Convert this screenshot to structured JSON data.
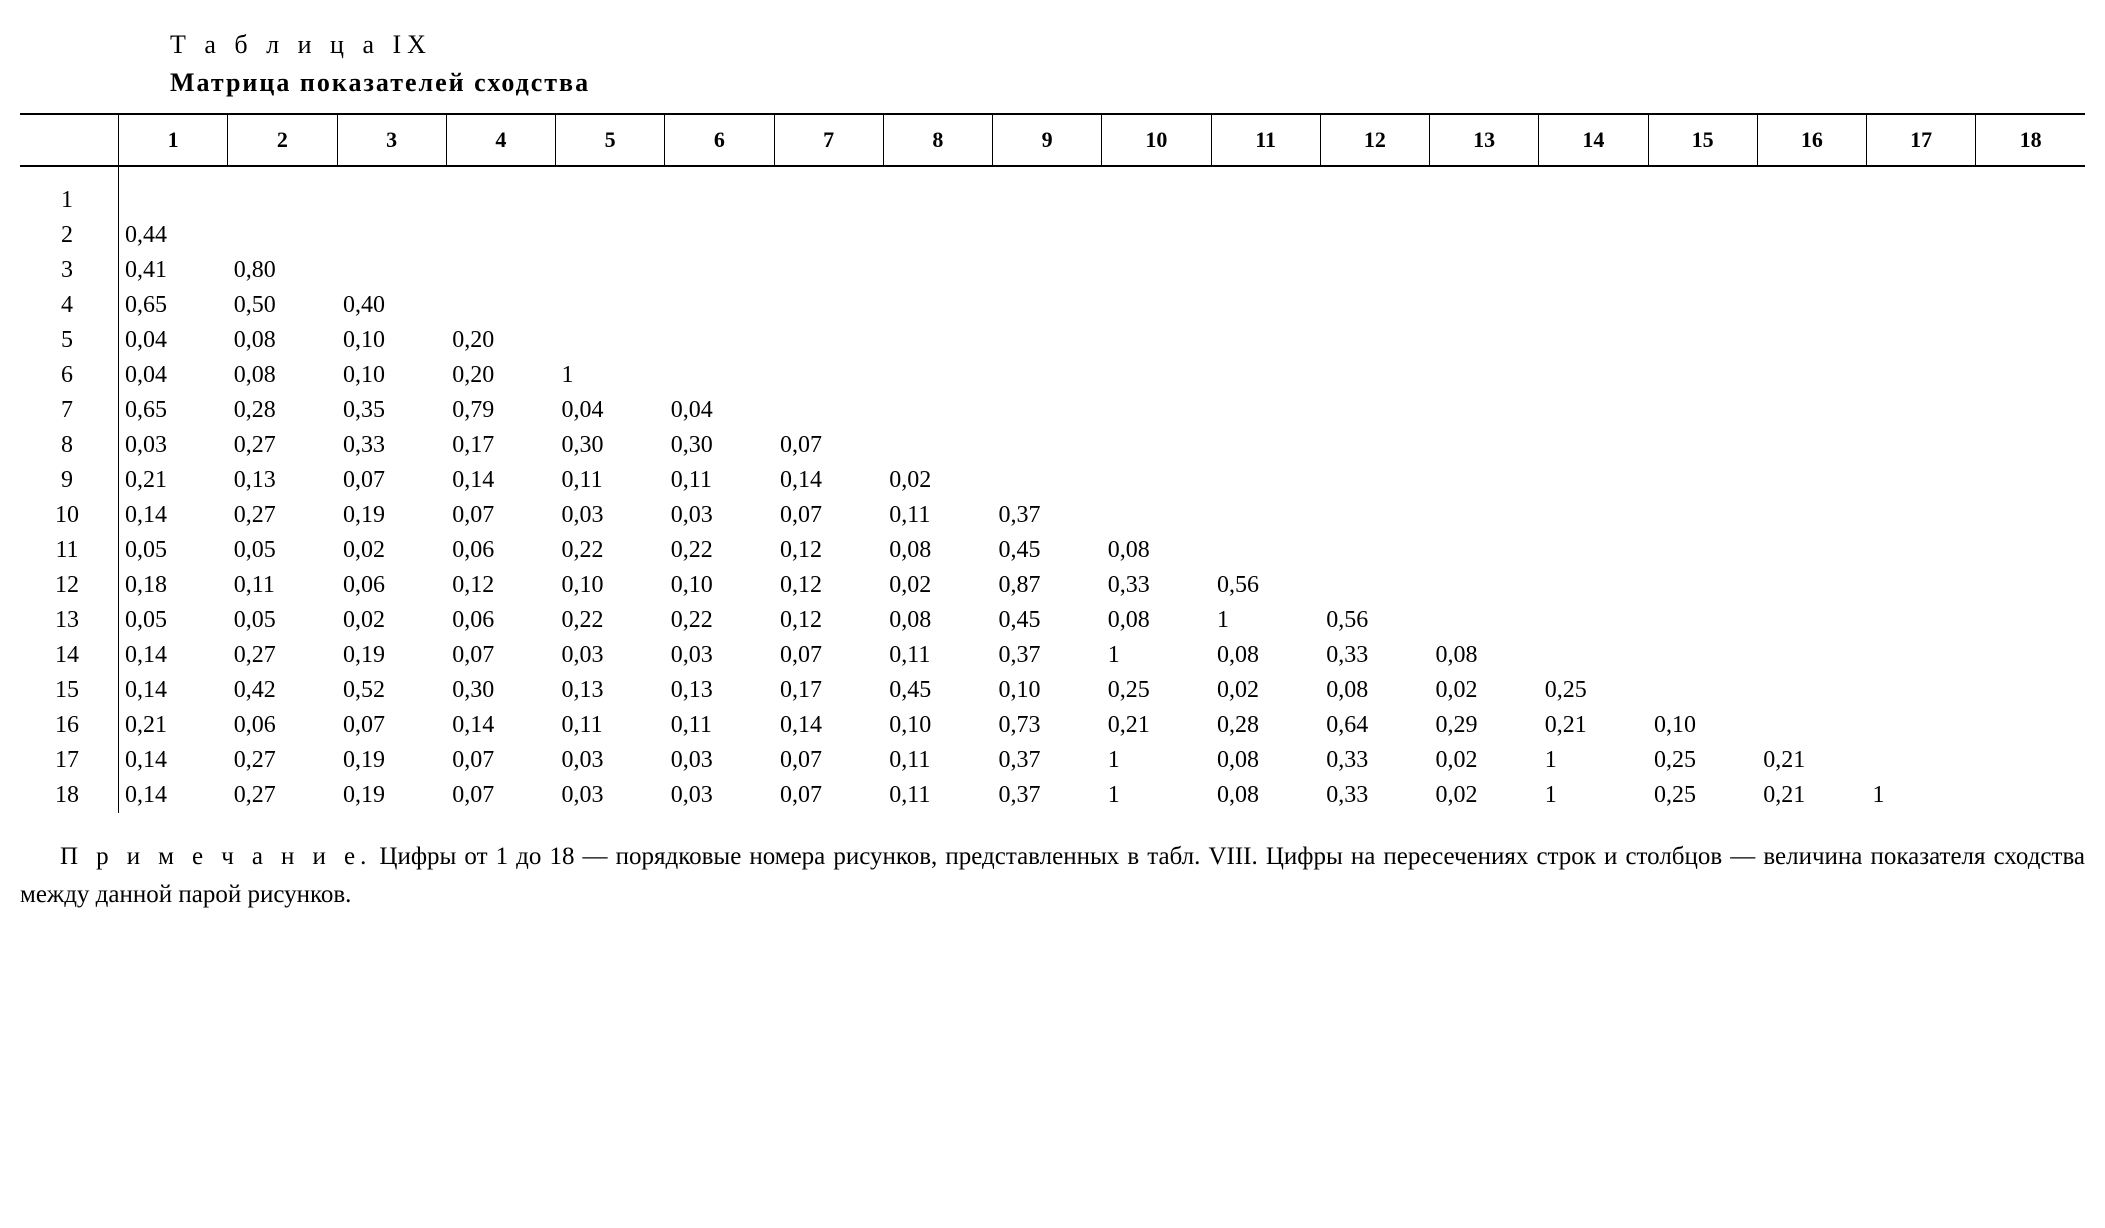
{
  "table_number": "Т а б л и ц а IX",
  "table_title": "Матрица показателей сходства",
  "columns": [
    "1",
    "2",
    "3",
    "4",
    "5",
    "6",
    "7",
    "8",
    "9",
    "10",
    "11",
    "12",
    "13",
    "14",
    "15",
    "16",
    "17",
    "18"
  ],
  "row_labels": [
    "1",
    "2",
    "3",
    "4",
    "5",
    "6",
    "7",
    "8",
    "9",
    "10",
    "11",
    "12",
    "13",
    "14",
    "15",
    "16",
    "17",
    "18"
  ],
  "rows": [
    [],
    [
      "0,44"
    ],
    [
      "0,41",
      "0,80"
    ],
    [
      "0,65",
      "0,50",
      "0,40"
    ],
    [
      "0,04",
      "0,08",
      "0,10",
      "0,20"
    ],
    [
      "0,04",
      "0,08",
      "0,10",
      "0,20",
      "1"
    ],
    [
      "0,65",
      "0,28",
      "0,35",
      "0,79",
      "0,04",
      "0,04"
    ],
    [
      "0,03",
      "0,27",
      "0,33",
      "0,17",
      "0,30",
      "0,30",
      "0,07"
    ],
    [
      "0,21",
      "0,13",
      "0,07",
      "0,14",
      "0,11",
      "0,11",
      "0,14",
      "0,02"
    ],
    [
      "0,14",
      "0,27",
      "0,19",
      "0,07",
      "0,03",
      "0,03",
      "0,07",
      "0,11",
      "0,37"
    ],
    [
      "0,05",
      "0,05",
      "0,02",
      "0,06",
      "0,22",
      "0,22",
      "0,12",
      "0,08",
      "0,45",
      "0,08"
    ],
    [
      "0,18",
      "0,11",
      "0,06",
      "0,12",
      "0,10",
      "0,10",
      "0,12",
      "0,02",
      "0,87",
      "0,33",
      "0,56"
    ],
    [
      "0,05",
      "0,05",
      "0,02",
      "0,06",
      "0,22",
      "0,22",
      "0,12",
      "0,08",
      "0,45",
      "0,08",
      "1",
      "0,56"
    ],
    [
      "0,14",
      "0,27",
      "0,19",
      "0,07",
      "0,03",
      "0,03",
      "0,07",
      "0,11",
      "0,37",
      "1",
      "0,08",
      "0,33",
      "0,08"
    ],
    [
      "0,14",
      "0,42",
      "0,52",
      "0,30",
      "0,13",
      "0,13",
      "0,17",
      "0,45",
      "0,10",
      "0,25",
      "0,02",
      "0,08",
      "0,02",
      "0,25"
    ],
    [
      "0,21",
      "0,06",
      "0,07",
      "0,14",
      "0,11",
      "0,11",
      "0,14",
      "0,10",
      "0,73",
      "0,21",
      "0,28",
      "0,64",
      "0,29",
      "0,21",
      "0,10"
    ],
    [
      "0,14",
      "0,27",
      "0,19",
      "0,07",
      "0,03",
      "0,03",
      "0,07",
      "0,11",
      "0,37",
      "1",
      "0,08",
      "0,33",
      "0,02",
      "1",
      "0,25",
      "0,21"
    ],
    [
      "0,14",
      "0,27",
      "0,19",
      "0,07",
      "0,03",
      "0,03",
      "0,07",
      "0,11",
      "0,37",
      "1",
      "0,08",
      "0,33",
      "0,02",
      "1",
      "0,25",
      "0,21",
      "1"
    ]
  ],
  "footnote_label": "П р и м е ч а н и е.",
  "footnote_text": "Цифры от 1 до 18 — порядковые номера рисунков, представленных в табл. VIII. Цифры на пересечениях строк и столбцов — величина показателя сходства между данной парой рисунков.",
  "style": {
    "type": "table",
    "background_color": "#ffffff",
    "text_color": "#000000",
    "border_color": "#000000",
    "font_family": "Times New Roman",
    "title_fontsize": 26,
    "header_fontsize": 22,
    "cell_fontsize": 24,
    "footnote_fontsize": 25,
    "num_columns": 18,
    "num_rows": 18
  }
}
